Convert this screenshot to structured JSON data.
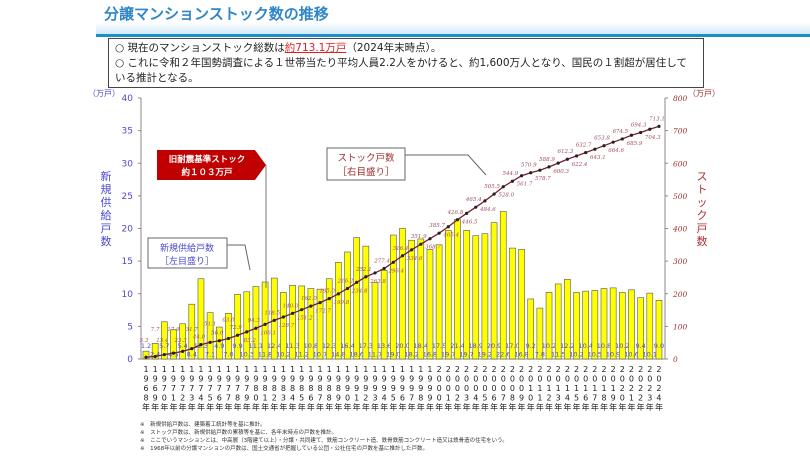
{
  "header": {
    "title": "分譲マンションストック数の推移"
  },
  "summary": {
    "line1_pre": "○ 現在のマンションストック総数は",
    "line1_highlight": "約713.1万戸",
    "line1_post": "（2024年末時点）。",
    "line2": "○ これに令和２年国勢調査による１世帯当たり平均人員2.2人をかけると、約1,600万人となり、国民の１割超が居住している推計となる。"
  },
  "chart_data": {
    "type": "bar+line",
    "categories": [
      "1968",
      "1969",
      "1970",
      "1971",
      "1972",
      "1973",
      "1974",
      "1975",
      "1976",
      "1977",
      "1978",
      "1979",
      "1980",
      "1981",
      "1982",
      "1983",
      "1984",
      "1985",
      "1986",
      "1987",
      "1988",
      "1989",
      "1990",
      "1991",
      "1992",
      "1993",
      "1994",
      "1995",
      "1996",
      "1997",
      "1998",
      "1999",
      "2000",
      "2001",
      "2002",
      "2003",
      "2004",
      "2005",
      "2006",
      "2007",
      "2008",
      "2009",
      "2010",
      "2011",
      "2012",
      "2013",
      "2014",
      "2015",
      "2016",
      "2017",
      "2018",
      "2019",
      "2020",
      "2021",
      "2022",
      "2023",
      "2024"
    ],
    "year_suffix": "年",
    "series": [
      {
        "name": "新規供給戸数",
        "axis": "left",
        "type": "bar",
        "color": "#ffff00",
        "values": [
          1.2,
          2.4,
          5.7,
          4.5,
          5.4,
          8.4,
          12.3,
          7.1,
          4.9,
          7.0,
          9.9,
          10.3,
          11.1,
          11.8,
          12.4,
          10.2,
          11.3,
          11.2,
          10.8,
          10.7,
          12.3,
          14.8,
          16.4,
          18.6,
          17.3,
          11.7,
          13.6,
          19.0,
          20.0,
          18.2,
          18.4,
          16.8,
          17.5,
          19.7,
          21.4,
          19.7,
          18.9,
          19.2,
          20.9,
          22.6,
          17.0,
          16.8,
          9.2,
          7.8,
          10.2,
          11.5,
          12.2,
          10.2,
          10.4,
          10.5,
          10.8,
          10.9,
          10.2,
          10.6,
          9.4,
          10.1,
          9.0
        ]
      },
      {
        "name": "ストック戸数",
        "axis": "right",
        "type": "line",
        "color": "#7a1a2a",
        "values": [
          5.3,
          7.7,
          13.4,
          17.9,
          23.3,
          31.7,
          44.0,
          51.1,
          56.0,
          63.0,
          72.9,
          83.2,
          94.3,
          106.1,
          118.5,
          128.7,
          140.0,
          151.2,
          162.0,
          172.7,
          185.0,
          199.8,
          216.2,
          234.8,
          252.1,
          263.8,
          277.4,
          296.4,
          316.4,
          334.6,
          351.9,
          368.7,
          385.7,
          405.4,
          426.8,
          446.5,
          465.4,
          484.6,
          505.5,
          528.0,
          544.9,
          561.7,
          570.9,
          578.7,
          588.9,
          600.3,
          612.3,
          622.4,
          632.7,
          643.1,
          653.8,
          664.6,
          674.5,
          685.9,
          694.3,
          704.3,
          713.1
        ]
      }
    ],
    "y_left": {
      "label": "新規供給戸数",
      "unit": "（万戸）",
      "range": [
        0,
        40
      ],
      "ticks": [
        0,
        5,
        10,
        15,
        20,
        25,
        30,
        35,
        40
      ]
    },
    "y_right": {
      "label": "ストック戸数",
      "unit": "（万戸）",
      "range": [
        0,
        800
      ],
      "ticks": [
        0,
        100,
        200,
        300,
        400,
        500,
        600,
        700,
        800
      ]
    },
    "annotations": {
      "old_standard": [
        "旧耐震基準ストック",
        "約１０３万戸"
      ],
      "supply_box": [
        "新規供給戸数",
        "［左目盛り］"
      ],
      "stock_box": [
        "ストック戸数",
        "［右目盛り］"
      ]
    },
    "colors": {
      "bar": "#ffff00",
      "line": "#7a1a2a",
      "callout": "#c00000",
      "left_axis_text": "#4a4ad0",
      "right_axis_text": "#a03030"
    }
  },
  "footnotes": [
    "※　新規供給戸数は、建築着工統計等を基に推計。",
    "※　ストック戸数は、新規供給戸数の累積等を基に、各年末時点の戸数を推計。",
    "※　ここでいうマンションとは、中高層（3階建て以上）・分譲・共同建て、鉄筋コンクリート造、鉄骨鉄筋コンクリート造又は鉄骨造の住宅をいう。",
    "※　1968年以前の分譲マンションの戸数は、国土交通省が把握している公団・公社住宅の戸数を基に推計した戸数。"
  ]
}
